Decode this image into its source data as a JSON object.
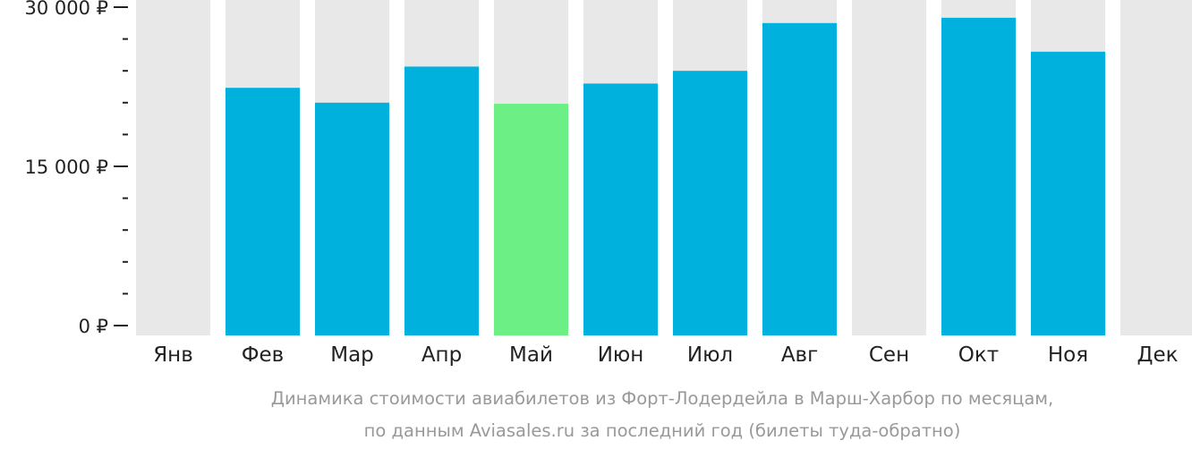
{
  "chart_data": {
    "type": "bar",
    "categories": [
      "Янв",
      "Фев",
      "Мар",
      "Апр",
      "Май",
      "Июн",
      "Июл",
      "Авг",
      "Сен",
      "Окт",
      "Ноя",
      "Дек"
    ],
    "values": [
      null,
      22400,
      21000,
      24400,
      20900,
      22800,
      24000,
      28500,
      null,
      29000,
      25800,
      null
    ],
    "highlight_category": "Май",
    "ylim": [
      0,
      30000
    ],
    "yticks": [
      0,
      15000,
      30000
    ],
    "ytick_labels": [
      "0 ₽",
      "15 000 ₽",
      "30 000 ₽"
    ],
    "minor_ytick_step": 3000,
    "caption_lines": [
      "Динамика стоимости авиабилетов из Форт-Лодердейла в Марш-Харбор по месяцам,",
      "по данным Aviasales.ru за последний год (билеты туда-обратно)"
    ],
    "xlabel": "",
    "ylabel": "",
    "grid": false,
    "colors": {
      "bar": "#00b0dd",
      "highlight": "#6cf086",
      "background_column": "#e8e8e8",
      "axis": "#222222",
      "text": "#222222",
      "caption": "#999999"
    }
  }
}
